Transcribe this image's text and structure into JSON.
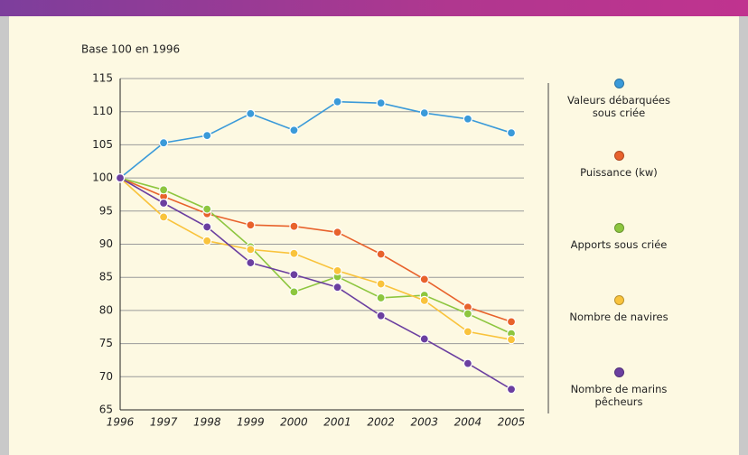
{
  "chart_data": {
    "type": "line",
    "y_label": "Base 100 en 1996",
    "x": [
      "1996",
      "1997",
      "1998",
      "1999",
      "2000",
      "2001",
      "2002",
      "2003",
      "2004",
      "2005"
    ],
    "ylim": [
      65,
      115
    ],
    "yticks": [
      65,
      70,
      75,
      80,
      85,
      90,
      95,
      100,
      105,
      110,
      115
    ],
    "grid": true,
    "legend": "right",
    "series": [
      {
        "name": "Valeurs débarquées sous criée",
        "color": "#3a9ad9",
        "values": [
          100,
          105.3,
          106.4,
          109.7,
          107.2,
          111.5,
          111.3,
          109.8,
          108.9,
          106.8
        ]
      },
      {
        "name": "Puissance (kw)",
        "color": "#e8622c",
        "values": [
          100,
          97.2,
          94.6,
          92.9,
          92.7,
          91.8,
          88.5,
          84.7,
          80.5,
          78.3
        ]
      },
      {
        "name": "Apports sous criée",
        "color": "#8dc63f",
        "values": [
          100,
          98.2,
          95.3,
          89.6,
          82.8,
          85.1,
          81.9,
          82.3,
          79.5,
          76.5
        ]
      },
      {
        "name": "Nombre de navires",
        "color": "#f9c33c",
        "values": [
          100,
          94.1,
          90.5,
          89.2,
          88.6,
          86.0,
          84.0,
          81.5,
          76.8,
          75.6
        ]
      },
      {
        "name": "Nombre de marins pêcheurs",
        "color": "#6b3fa0",
        "values": [
          100,
          96.2,
          92.6,
          87.2,
          85.4,
          83.5,
          79.2,
          75.7,
          72.0,
          68.1
        ]
      }
    ]
  }
}
